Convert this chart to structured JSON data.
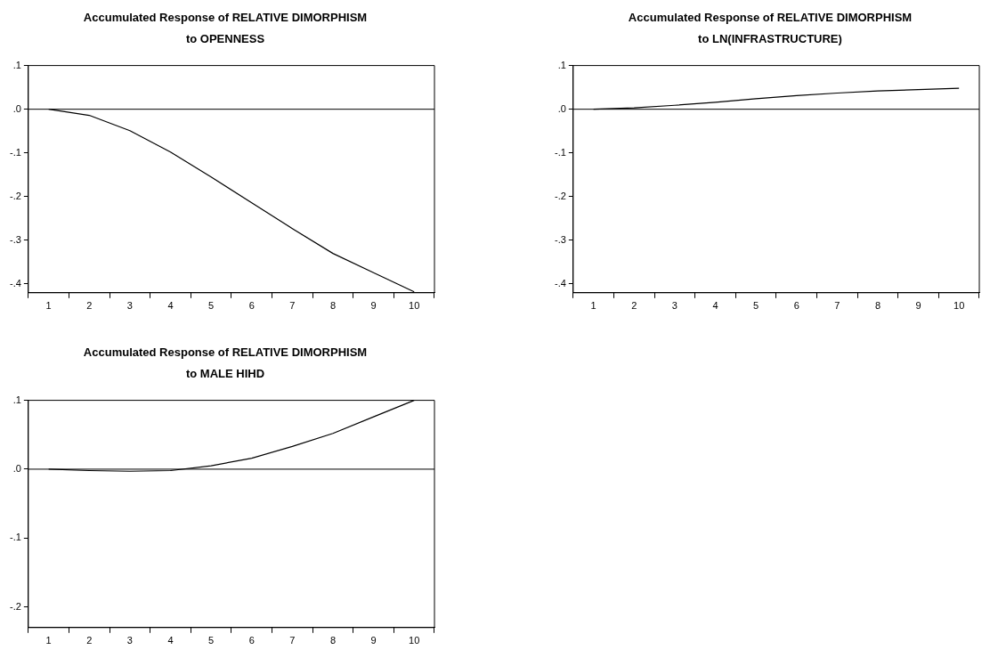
{
  "chart_data": [
    {
      "type": "line",
      "title": "Accumulated Response of RELATIVE DIMORPHISM\nto OPENNESS",
      "categories": [
        "1",
        "2",
        "3",
        "4",
        "5",
        "6",
        "7",
        "8",
        "9",
        "10"
      ],
      "series": [
        {
          "color": "#000000",
          "values": [
            0.0,
            -0.014,
            -0.049,
            -0.098,
            -0.155,
            -0.214,
            -0.273,
            -0.33,
            -0.374,
            -0.418
          ]
        }
      ],
      "ylim": [
        -0.42,
        0.1
      ],
      "yticks": [
        {
          "value": 0.1,
          "label": ".1"
        },
        {
          "value": 0,
          "label": ".0"
        },
        {
          "value": -0.1,
          "label": "-.1"
        },
        {
          "value": -0.2,
          "label": "-.2"
        },
        {
          "value": -0.3,
          "label": "-.3"
        },
        {
          "value": -0.4,
          "label": "-.4"
        }
      ],
      "ref_lines": [
        {
          "axis": "y",
          "value": 0,
          "color": "#000000"
        }
      ],
      "grid": false,
      "legend": false,
      "marker": "none"
    },
    {
      "type": "line",
      "title": "Accumulated Response of RELATIVE DIMORPHISM\nto LN(INFRASTRUCTURE)",
      "categories": [
        "1",
        "2",
        "3",
        "4",
        "5",
        "6",
        "7",
        "8",
        "9",
        "10"
      ],
      "series": [
        {
          "color": "#000000",
          "values": [
            0.0,
            0.003,
            0.009,
            0.016,
            0.024,
            0.031,
            0.037,
            0.042,
            0.045,
            0.048
          ]
        }
      ],
      "ylim": [
        -0.42,
        0.1
      ],
      "yticks": [
        {
          "value": 0.1,
          "label": ".1"
        },
        {
          "value": 0,
          "label": ".0"
        },
        {
          "value": -0.1,
          "label": "-.1"
        },
        {
          "value": -0.2,
          "label": "-.2"
        },
        {
          "value": -0.3,
          "label": "-.3"
        },
        {
          "value": -0.4,
          "label": "-.4"
        }
      ],
      "ref_lines": [
        {
          "axis": "y",
          "value": 0,
          "color": "#000000"
        }
      ],
      "grid": false,
      "legend": false,
      "marker": "none"
    },
    {
      "type": "line",
      "title": "Accumulated Response of RELATIVE DIMORPHISM\nto MALE HIHD",
      "categories": [
        "1",
        "2",
        "3",
        "4",
        "5",
        "6",
        "7",
        "8",
        "9",
        "10"
      ],
      "series": [
        {
          "color": "#000000",
          "values": [
            0.0,
            -0.002,
            -0.003,
            -0.002,
            0.005,
            0.016,
            0.033,
            0.052,
            0.076,
            0.1
          ]
        }
      ],
      "ylim": [
        -0.23,
        0.1
      ],
      "yticks": [
        {
          "value": 0.1,
          "label": ".1"
        },
        {
          "value": 0,
          "label": ".0"
        },
        {
          "value": -0.1,
          "label": "-.1"
        },
        {
          "value": -0.2,
          "label": "-.2"
        }
      ],
      "ref_lines": [
        {
          "axis": "y",
          "value": 0,
          "color": "#000000"
        }
      ],
      "grid": false,
      "legend": false,
      "marker": "none"
    }
  ]
}
